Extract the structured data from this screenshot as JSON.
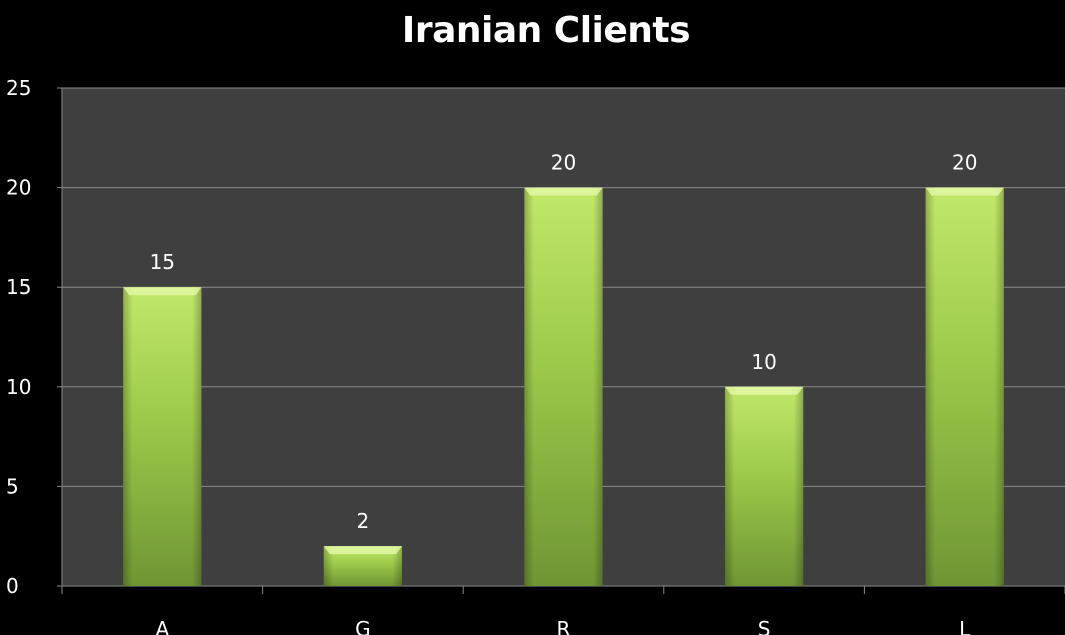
{
  "chart_data": {
    "type": "bar",
    "title": "Iranian Clients",
    "categories": [
      "A",
      "G",
      "R",
      "S",
      "L"
    ],
    "values": [
      15,
      2,
      20,
      10,
      20
    ],
    "xlabel": "",
    "ylabel": "",
    "ylim": [
      0,
      25
    ],
    "yticks": [
      "0",
      "5",
      "10",
      "15",
      "20",
      "25"
    ],
    "data_labels": [
      "15",
      "2",
      "20",
      "10",
      "20"
    ],
    "grid": true,
    "legend": "none",
    "colors": {
      "page_background": "#000000",
      "plot_background": "#3f3f3f",
      "bar_top": "#c2e86a",
      "bar_mid": "#9bc94a",
      "bar_bottom": "#6f9534",
      "grid": "#8a8a8a",
      "text": "#ffffff"
    }
  }
}
